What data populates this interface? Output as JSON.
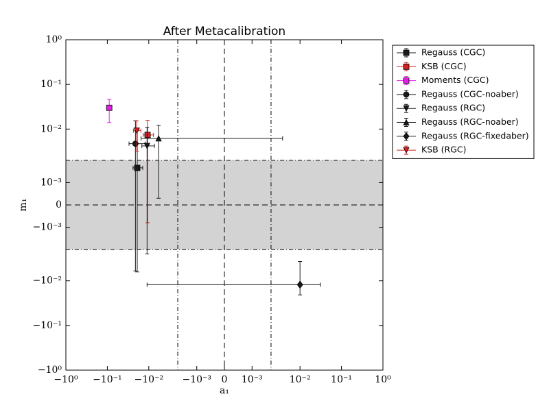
{
  "chart_data": {
    "type": "errorbar_scatter",
    "title": "After Metacalibration",
    "xlabel": "a₁",
    "ylabel": "m₁",
    "xscale": "symlog",
    "yscale": "symlog",
    "xlinthresh": 0.0015,
    "ylinthresh": 0.002,
    "xlim": [
      -1,
      1
    ],
    "ylim": [
      -1,
      1
    ],
    "xticks": [
      {
        "value": -1,
        "label": "−10⁰"
      },
      {
        "value": -0.1,
        "label": "−10⁻¹"
      },
      {
        "value": -0.01,
        "label": "−10⁻²"
      },
      {
        "value": -0.001,
        "label": "−10⁻³"
      },
      0,
      {
        "value": 0.001,
        "label": "10⁻³"
      },
      {
        "value": 0.01,
        "label": "10⁻²"
      },
      {
        "value": 0.1,
        "label": "10⁻¹"
      },
      {
        "value": 1,
        "label": "10⁰"
      }
    ],
    "yticks": [
      {
        "value": -1,
        "label": "−10⁰"
      },
      {
        "value": -0.1,
        "label": "−10⁻¹"
      },
      {
        "value": -0.01,
        "label": "−10⁻²"
      },
      {
        "value": -0.001,
        "label": "−10⁻³"
      },
      0,
      {
        "value": 0.001,
        "label": "10⁻³"
      },
      {
        "value": 0.01,
        "label": "10⁻²"
      },
      {
        "value": 0.1,
        "label": "10⁻¹"
      },
      {
        "value": 1,
        "label": "10⁰"
      }
    ],
    "hband": [
      -0.002,
      0.002
    ],
    "band_color": "#d3d3d3",
    "xlines": [
      -0.002,
      0.002
    ],
    "legend": "outside upper right",
    "series": [
      {
        "name": "Regauss (CGC)",
        "color": "#1a1a1a",
        "marker": "square",
        "x": [
          -0.019
        ],
        "y": [
          0.00166
        ],
        "xerr": [
          0.005
        ],
        "yerr": [
          0.008
        ]
      },
      {
        "name": "KSB (CGC)",
        "color": "#d62020",
        "marker": "square",
        "x": [
          -0.0107
        ],
        "y": [
          0.0074
        ],
        "xerr": [
          0.003
        ],
        "yerr": [
          0.0082
        ]
      },
      {
        "name": "Moments (CGC)",
        "color": "#e020e0",
        "marker": "square",
        "x": [
          -0.09
        ],
        "y": [
          0.03
        ],
        "xerr": [
          0
        ],
        "yerr": [
          0.016
        ]
      },
      {
        "name": "Regauss (CGC-noaber)",
        "color": "#1a1a1a",
        "marker": "circle",
        "x": [
          -0.021
        ],
        "y": [
          0.0047
        ],
        "xerr": [
          0.009
        ],
        "yerr": [
          0.0107
        ]
      },
      {
        "name": "Regauss (RGC)",
        "color": "#1a1a1a",
        "marker": "triangle-down",
        "x": [
          -0.011
        ],
        "y": [
          0.0042
        ],
        "xerr": [
          0.0037
        ],
        "yerr": [
          0.0067
        ]
      },
      {
        "name": "Regauss (RGC-noaber)",
        "color": "#1a1a1a",
        "marker": "triangle-up",
        "x": [
          -0.0058
        ],
        "y": [
          0.0062
        ],
        "xerr": [
          0.0096
        ],
        "yerr": [
          0.0059
        ]
      },
      {
        "name": "Regauss (RGC-fixedaber)",
        "color": "#1a1a1a",
        "marker": "diamond",
        "x": [
          0.01
        ],
        "y": [
          -0.0122
        ],
        "xerr": [
          0.021
        ],
        "yerr": [
          0.0085
        ]
      },
      {
        "name": "KSB (RGC)",
        "color": "#d62020",
        "marker": "triangle-down",
        "x": [
          -0.0195
        ],
        "y": [
          0.0092
        ],
        "xerr": [
          0.004
        ],
        "yerr": [
          0.006
        ]
      }
    ]
  }
}
